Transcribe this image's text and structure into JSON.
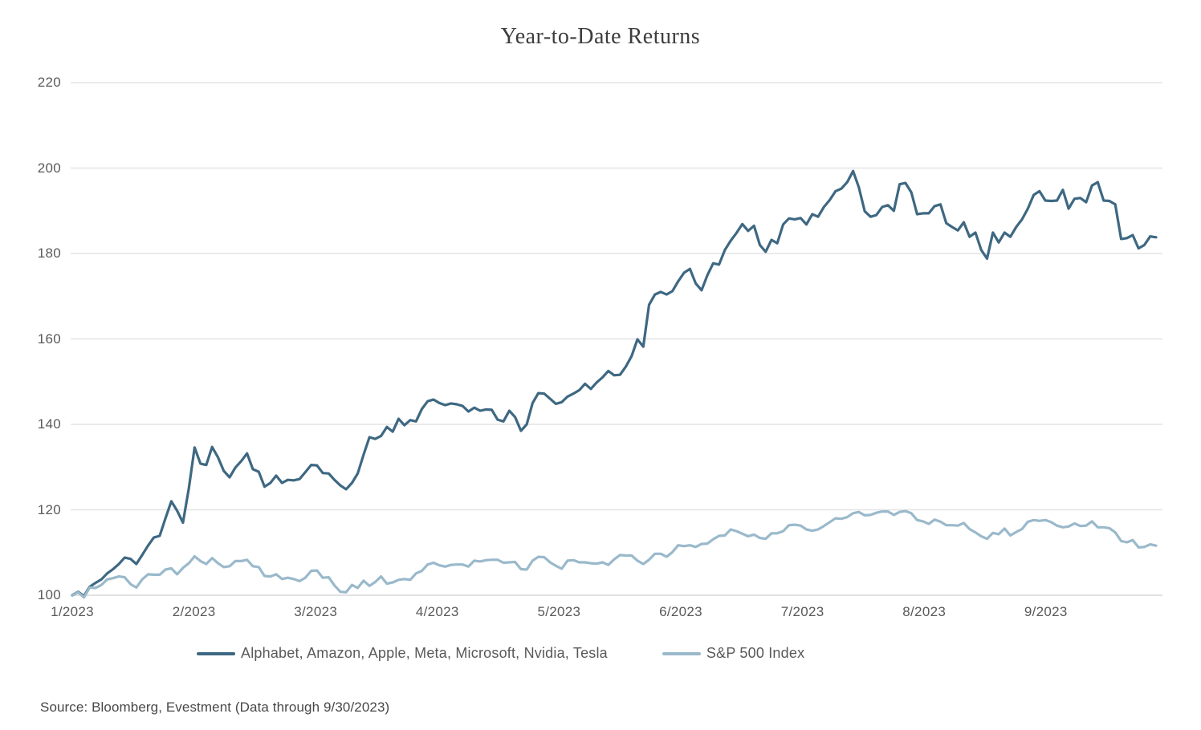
{
  "title": "Year-to-Date Returns",
  "source": "Source: Bloomberg, Evestment (Data through 9/30/2023)",
  "colors": {
    "mag7_line": "#3e6882",
    "sp500_line": "#9ab9cb",
    "gridline": "#e4e4e4",
    "axis_line": "#d8d8d8",
    "tick_text": "#595959",
    "title_text": "#3d3d3d"
  },
  "chart_data": {
    "type": "line",
    "title": "Year-to-Date Returns",
    "xlabel": "",
    "ylabel": "",
    "ylim": [
      100,
      220
    ],
    "y_ticks": [
      100,
      120,
      140,
      160,
      180,
      200,
      220
    ],
    "x_tick_labels": [
      "1/2023",
      "2/2023",
      "3/2023",
      "4/2023",
      "5/2023",
      "6/2023",
      "7/2023",
      "8/2023",
      "9/2023"
    ],
    "grid": "horizontal",
    "legend_position": "bottom",
    "series": [
      {
        "name": "Alphabet, Amazon, Apple, Meta, Microsoft, Nvidia, Tesla",
        "color": "#3e6882",
        "values": [
          100.0,
          100.8,
          99.8,
          102.0,
          102.9,
          103.7,
          105.1,
          106.1,
          107.3,
          108.8,
          108.5,
          107.3,
          109.4,
          111.6,
          113.5,
          113.9,
          118.0,
          122.0,
          119.8,
          117.0,
          125.0,
          134.6,
          130.8,
          130.5,
          134.7,
          132.3,
          129.1,
          127.6,
          129.9,
          131.4,
          133.2,
          129.5,
          128.9,
          125.4,
          126.3,
          128.0,
          126.3,
          127.0,
          126.9,
          127.2,
          128.8,
          130.5,
          130.4,
          128.6,
          128.5,
          127.0,
          125.7,
          124.8,
          126.3,
          128.5,
          132.9,
          137.0,
          136.6,
          137.3,
          139.4,
          138.3,
          141.3,
          139.8,
          141.0,
          140.7,
          143.6,
          145.4,
          145.8,
          145.0,
          144.5,
          144.9,
          144.7,
          144.3,
          143.0,
          143.9,
          143.2,
          143.5,
          143.4,
          141.1,
          140.7,
          143.2,
          141.7,
          138.5,
          140.0,
          145.0,
          147.3,
          147.2,
          146.0,
          144.8,
          145.2,
          146.5,
          147.2,
          148.0,
          149.5,
          148.3,
          149.8,
          151.0,
          152.5,
          151.5,
          151.6,
          153.5,
          156.0,
          159.9,
          158.2,
          168.0,
          170.4,
          171.0,
          170.4,
          171.2,
          173.5,
          175.5,
          176.4,
          173.0,
          171.4,
          174.9,
          177.7,
          177.4,
          180.8,
          183.0,
          184.8,
          186.9,
          185.3,
          186.5,
          182.0,
          180.4,
          183.2,
          182.4,
          186.8,
          188.2,
          188.0,
          188.3,
          186.8,
          189.2,
          188.6,
          190.9,
          192.5,
          194.6,
          195.2,
          196.7,
          199.3,
          195.5,
          189.9,
          188.6,
          189.0,
          190.9,
          191.3,
          190.0,
          196.2,
          196.5,
          194.3,
          189.2,
          189.4,
          189.4,
          191.1,
          191.5,
          187.1,
          186.2,
          185.4,
          187.3,
          183.9,
          184.9,
          180.8,
          178.8,
          184.9,
          182.6,
          184.9,
          183.9,
          186.2,
          188.0,
          190.5,
          193.7,
          194.6,
          192.4,
          192.3,
          192.4,
          194.9,
          190.5,
          192.8,
          193.0,
          192.0,
          195.9,
          196.7,
          192.4,
          192.3,
          191.5,
          183.4,
          183.6,
          184.3,
          181.2,
          182.0,
          184.0,
          183.8
        ]
      },
      {
        "name": "S&P 500 Index",
        "color": "#9ab9cb",
        "values": [
          99.9,
          100.7,
          99.5,
          101.8,
          101.7,
          102.4,
          103.7,
          104.0,
          104.4,
          104.2,
          102.6,
          101.8,
          103.7,
          104.9,
          104.8,
          104.8,
          106.0,
          106.3,
          104.9,
          106.4,
          107.5,
          109.1,
          108.0,
          107.3,
          108.7,
          107.5,
          106.6,
          106.8,
          108.0,
          108.0,
          108.3,
          106.8,
          106.6,
          104.5,
          104.4,
          104.9,
          103.8,
          104.1,
          103.8,
          103.3,
          104.1,
          105.7,
          105.8,
          104.1,
          104.2,
          102.3,
          100.8,
          100.7,
          102.4,
          101.7,
          103.4,
          102.2,
          103.1,
          104.4,
          102.7,
          103.0,
          103.6,
          103.8,
          103.6,
          105.1,
          105.7,
          107.2,
          107.6,
          107.0,
          106.7,
          107.1,
          107.2,
          107.2,
          106.7,
          108.1,
          107.9,
          108.2,
          108.3,
          108.3,
          107.6,
          107.7,
          107.8,
          106.1,
          106.0,
          108.1,
          109.0,
          108.9,
          107.7,
          106.9,
          106.2,
          108.1,
          108.2,
          107.7,
          107.7,
          107.5,
          107.4,
          107.7,
          107.1,
          108.4,
          109.4,
          109.3,
          109.3,
          108.1,
          107.3,
          108.3,
          109.7,
          109.7,
          109.0,
          110.1,
          111.7,
          111.5,
          111.7,
          111.3,
          112.0,
          112.1,
          113.1,
          113.9,
          114.0,
          115.4,
          115.0,
          114.4,
          113.8,
          114.2,
          113.4,
          113.2,
          114.5,
          114.5,
          115.0,
          116.4,
          116.5,
          116.3,
          115.4,
          115.1,
          115.4,
          116.2,
          117.1,
          118.0,
          117.9,
          118.3,
          119.2,
          119.5,
          118.7,
          118.8,
          119.3,
          119.6,
          119.6,
          118.8,
          119.5,
          119.7,
          119.2,
          117.6,
          117.3,
          116.7,
          117.7,
          117.2,
          116.4,
          116.4,
          116.3,
          116.9,
          115.5,
          114.7,
          113.8,
          113.2,
          114.6,
          114.3,
          115.6,
          114.0,
          114.8,
          115.5,
          117.2,
          117.6,
          117.4,
          117.6,
          117.1,
          116.3,
          115.9,
          116.1,
          116.8,
          116.2,
          116.3,
          117.3,
          115.9,
          115.9,
          115.7,
          114.7,
          112.7,
          112.4,
          112.9,
          111.2,
          111.3,
          111.9,
          111.6
        ]
      }
    ]
  },
  "legend": {
    "items": [
      {
        "label": "Alphabet, Amazon, Apple, Meta, Microsoft, Nvidia, Tesla"
      },
      {
        "label": "S&P 500 Index"
      }
    ]
  }
}
